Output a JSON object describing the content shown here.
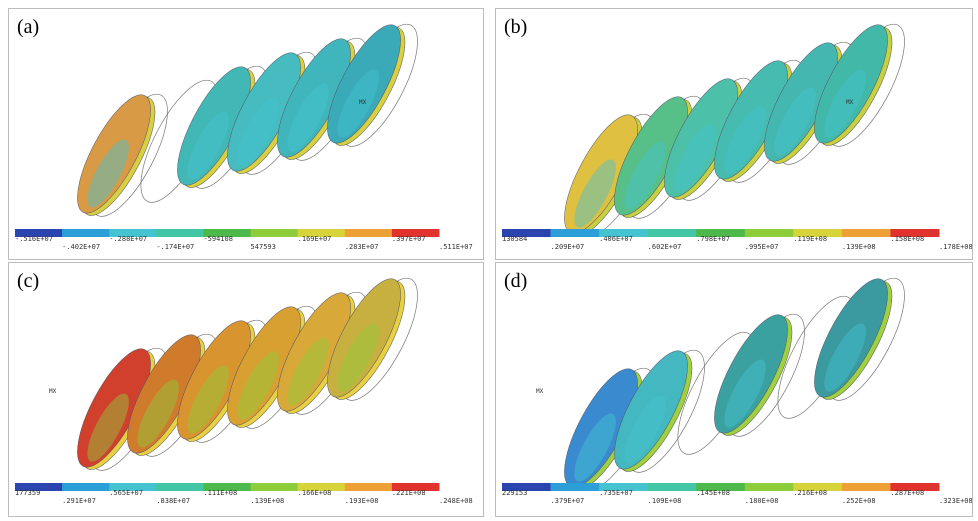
{
  "panels": [
    {
      "label": "(a)",
      "marker": "MX",
      "legend": [
        "-.516E+07",
        "-.402E+07",
        "-.288E+07",
        "-.174E+07",
        "-594108",
        "547593",
        ".169E+07",
        ".283E+07",
        ".397E+07",
        ".511E+07"
      ]
    },
    {
      "label": "(b)",
      "marker": "MX",
      "legend": [
        "130584",
        ".209E+07",
        ".406E+07",
        ".602E+07",
        ".798E+07",
        ".995E+07",
        ".119E+08",
        ".139E+08",
        ".158E+08",
        ".178E+08"
      ]
    },
    {
      "label": "(c)",
      "marker": "MX",
      "legend": [
        "177359",
        ".291E+07",
        ".565E+07",
        ".838E+07",
        ".111E+08",
        ".139E+08",
        ".166E+08",
        ".193E+08",
        ".221E+08",
        ".248E+08"
      ]
    },
    {
      "label": "(d)",
      "marker": "MX",
      "legend": [
        "229153",
        ".379E+07",
        ".735E+07",
        ".109E+08",
        ".145E+08",
        ".180E+08",
        ".216E+08",
        ".252E+08",
        ".287E+08",
        ".323E+08"
      ]
    }
  ]
}
